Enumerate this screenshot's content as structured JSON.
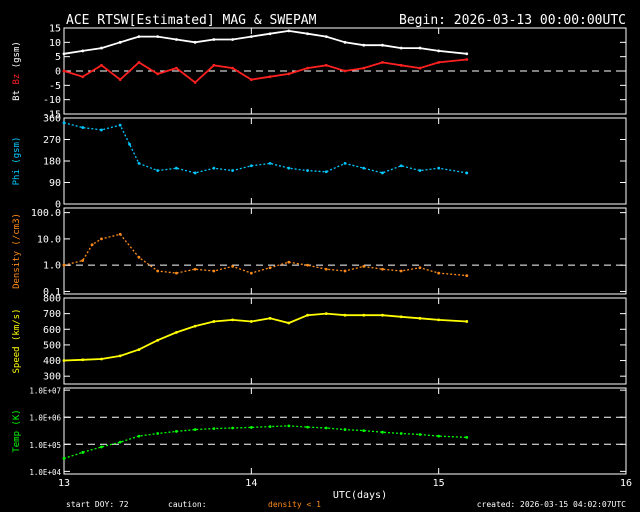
{
  "header": {
    "title": "ACE RTSW[Estimated] MAG & SWEPAM",
    "begin": "Begin: 2026-03-13 00:00:00UTC"
  },
  "footer": {
    "start_doy": "start DOY:  72",
    "caution": "caution:",
    "density_note": "density < 1",
    "created": "created: 2026-03-15 04:02:07UTC"
  },
  "colors": {
    "background": "#000000",
    "axes": "#ffffff",
    "bt": "#ffffff",
    "bz": "#ff2020",
    "phi": "#00c8ff",
    "density": "#ff8c1a",
    "speed": "#ffff00",
    "temp": "#00ff00",
    "caution": "#ff8c1a"
  },
  "chart_data": [
    {
      "type": "line",
      "panel": "mag",
      "ylabel_parts": [
        "Bt",
        "Bz",
        "(gsm)"
      ],
      "ylim": [
        -15,
        15
      ],
      "yticks": [
        "15",
        "10",
        "5",
        "0",
        "-5",
        "-10",
        "-15"
      ],
      "ytick_values": [
        15,
        10,
        5,
        0,
        -5,
        -10,
        -15
      ],
      "dashed_lines": [
        0
      ],
      "series": [
        {
          "name": "Bt",
          "x": [
            13.0,
            13.1,
            13.2,
            13.3,
            13.4,
            13.5,
            13.6,
            13.7,
            13.8,
            13.9,
            14.0,
            14.1,
            14.2,
            14.3,
            14.4,
            14.5,
            14.6,
            14.7,
            14.8,
            14.9,
            15.0,
            15.15
          ],
          "y": [
            6,
            7,
            8,
            10,
            12,
            12,
            11,
            10,
            11,
            11,
            12,
            13,
            14,
            13,
            12,
            10,
            9,
            9,
            8,
            8,
            7,
            6
          ]
        },
        {
          "name": "Bz",
          "x": [
            13.0,
            13.1,
            13.2,
            13.3,
            13.4,
            13.5,
            13.6,
            13.7,
            13.8,
            13.9,
            14.0,
            14.1,
            14.2,
            14.3,
            14.4,
            14.5,
            14.6,
            14.7,
            14.8,
            14.9,
            15.0,
            15.15
          ],
          "y": [
            0,
            -2,
            2,
            -3,
            3,
            -1,
            1,
            -4,
            2,
            1,
            -3,
            -2,
            -1,
            1,
            2,
            0,
            1,
            3,
            2,
            1,
            3,
            4
          ]
        }
      ]
    },
    {
      "type": "scatter",
      "panel": "phi",
      "ylabel": "Phi (gsm)",
      "ylim": [
        0,
        360
      ],
      "yticks": [
        "360",
        "270",
        "180",
        "90",
        "0"
      ],
      "ytick_values": [
        360,
        270,
        180,
        90,
        0
      ],
      "series": [
        {
          "name": "Phi",
          "x": [
            13.0,
            13.1,
            13.2,
            13.3,
            13.35,
            13.4,
            13.5,
            13.6,
            13.7,
            13.8,
            13.9,
            14.0,
            14.1,
            14.2,
            14.3,
            14.4,
            14.5,
            14.6,
            14.7,
            14.8,
            14.9,
            15.0,
            15.15
          ],
          "y": [
            340,
            320,
            310,
            330,
            250,
            170,
            140,
            150,
            130,
            150,
            140,
            160,
            170,
            150,
            140,
            135,
            170,
            150,
            130,
            160,
            140,
            150,
            130
          ]
        }
      ]
    },
    {
      "type": "scatter",
      "panel": "density",
      "ylabel": "Density (/cm3)",
      "scale": "log",
      "ylim": [
        0.08,
        150
      ],
      "yticks": [
        "100.0",
        "10.0",
        "1.0",
        "0.1"
      ],
      "ytick_values": [
        100,
        10,
        1,
        0.1
      ],
      "dashed_lines": [
        1
      ],
      "series": [
        {
          "name": "Density",
          "x": [
            13.0,
            13.1,
            13.15,
            13.2,
            13.3,
            13.4,
            13.5,
            13.6,
            13.7,
            13.8,
            13.9,
            14.0,
            14.1,
            14.2,
            14.3,
            14.4,
            14.5,
            14.6,
            14.7,
            14.8,
            14.9,
            15.0,
            15.15
          ],
          "y": [
            1.0,
            1.5,
            6,
            10,
            15,
            2,
            0.6,
            0.5,
            0.7,
            0.6,
            0.9,
            0.5,
            0.8,
            1.3,
            1.0,
            0.7,
            0.6,
            0.9,
            0.7,
            0.6,
            0.8,
            0.5,
            0.4
          ]
        }
      ]
    },
    {
      "type": "line",
      "panel": "speed",
      "ylabel": "Speed (km/s)",
      "ylim": [
        250,
        800
      ],
      "yticks": [
        "800",
        "700",
        "600",
        "500",
        "400",
        "300"
      ],
      "ytick_values": [
        800,
        700,
        600,
        500,
        400,
        300
      ],
      "series": [
        {
          "name": "Speed",
          "x": [
            13.0,
            13.1,
            13.2,
            13.3,
            13.4,
            13.5,
            13.6,
            13.7,
            13.8,
            13.9,
            14.0,
            14.1,
            14.2,
            14.3,
            14.4,
            14.5,
            14.6,
            14.7,
            14.8,
            14.9,
            15.0,
            15.15
          ],
          "y": [
            400,
            405,
            410,
            430,
            470,
            530,
            580,
            620,
            650,
            660,
            650,
            670,
            640,
            690,
            700,
            690,
            690,
            690,
            680,
            670,
            660,
            650
          ]
        }
      ]
    },
    {
      "type": "scatter",
      "panel": "temp",
      "ylabel": "Temp (K)",
      "scale": "log",
      "ylim": [
        8000,
        12000000
      ],
      "yticks": [
        "1.0E+07",
        "1.0E+06",
        "1.0E+05",
        "1.0E+04"
      ],
      "ytick_values": [
        10000000,
        1000000,
        100000,
        10000
      ],
      "dashed_lines": [
        1000000,
        100000
      ],
      "series": [
        {
          "name": "Temp",
          "x": [
            13.0,
            13.1,
            13.2,
            13.3,
            13.4,
            13.5,
            13.6,
            13.7,
            13.8,
            13.9,
            14.0,
            14.1,
            14.2,
            14.3,
            14.4,
            14.5,
            14.6,
            14.7,
            14.8,
            14.9,
            15.0,
            15.15
          ],
          "y": [
            30000,
            50000,
            80000,
            120000,
            200000,
            250000,
            300000,
            350000,
            380000,
            400000,
            420000,
            450000,
            480000,
            430000,
            400000,
            350000,
            320000,
            280000,
            250000,
            230000,
            200000,
            180000
          ]
        }
      ]
    }
  ],
  "xaxis": {
    "xlim": [
      13,
      16
    ],
    "ticks": [
      "13",
      "14",
      "15",
      "16"
    ],
    "tick_values": [
      13,
      14,
      15,
      16
    ],
    "label": "UTC(days)"
  }
}
